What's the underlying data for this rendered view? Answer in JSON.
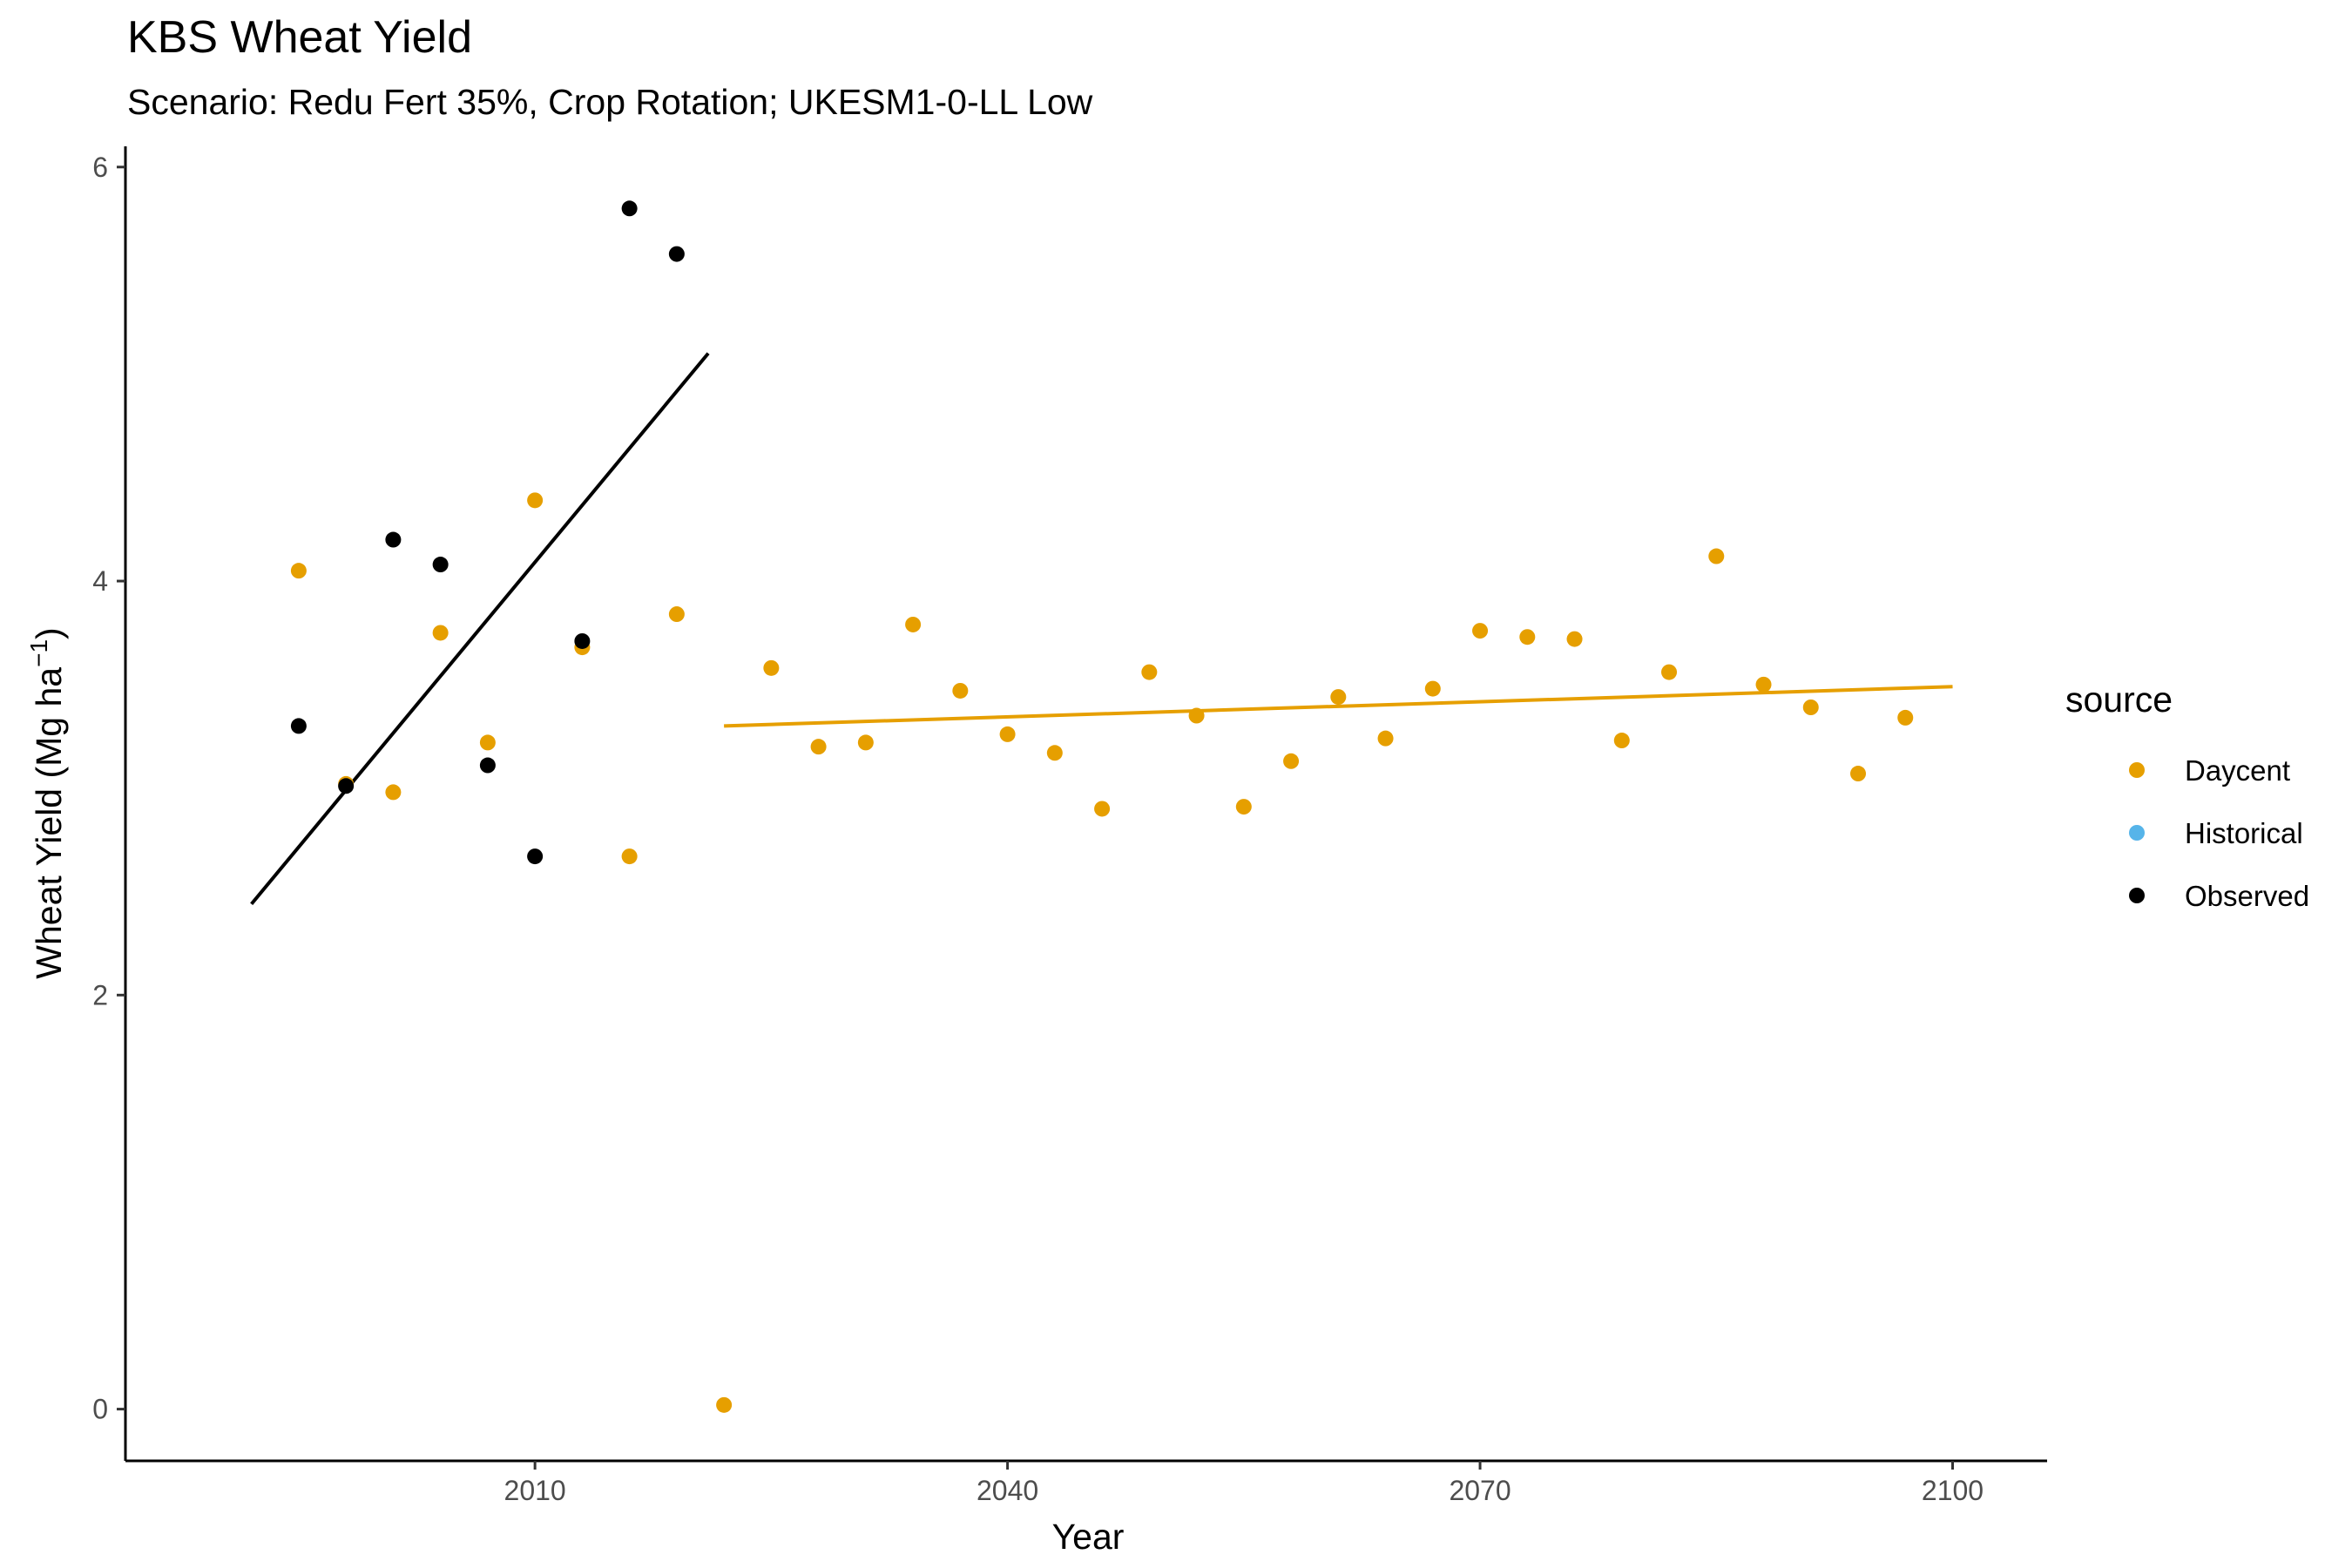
{
  "chart_data": {
    "type": "scatter",
    "title": "KBS Wheat Yield",
    "subtitle": "Scenario: Redu Fert 35%, Crop Rotation; UKESM1-0-LL Low",
    "xlabel": "Year",
    "ylabel_main": "Wheat Yield (Mg ha",
    "ylabel_sup": "−1",
    "ylabel_close": ")",
    "xlim": [
      1984,
      2106
    ],
    "ylim": [
      -0.25,
      6.1
    ],
    "xticks": [
      2010,
      2040,
      2070,
      2100
    ],
    "yticks": [
      0,
      2,
      4,
      6
    ],
    "grid": false,
    "legend_title": "source",
    "legend_position": "right",
    "colors": {
      "Daycent": "#E69F00",
      "Historical": "#56B4E9",
      "Observed": "#000000"
    },
    "series": [
      {
        "name": "Daycent",
        "x": [
          1995,
          1998,
          2001,
          2004,
          2007,
          2010,
          2013,
          2016,
          2019,
          2022,
          2025,
          2028,
          2031,
          2034,
          2037,
          2040,
          2043,
          2046,
          2049,
          2052,
          2055,
          2058,
          2061,
          2064,
          2067,
          2070,
          2073,
          2076,
          2079,
          2082,
          2085,
          2088,
          2091,
          2094,
          2097
        ],
        "y": [
          4.05,
          3.02,
          2.98,
          3.75,
          3.22,
          4.39,
          3.68,
          2.67,
          3.84,
          0.02,
          3.58,
          3.2,
          3.22,
          3.79,
          3.47,
          3.26,
          3.17,
          2.9,
          3.56,
          3.35,
          2.91,
          3.13,
          3.44,
          3.24,
          3.48,
          3.76,
          3.73,
          3.72,
          3.23,
          3.56,
          4.12,
          3.5,
          3.39,
          3.07,
          3.34
        ]
      },
      {
        "name": "Historical",
        "x": [],
        "y": []
      },
      {
        "name": "Observed",
        "x": [
          1995,
          1998,
          2001,
          2004,
          2007,
          2010,
          2013,
          2016,
          2019
        ],
        "y": [
          3.3,
          3.01,
          4.2,
          4.08,
          3.11,
          2.67,
          3.71,
          5.8,
          5.58
        ]
      }
    ],
    "trend_lines": [
      {
        "series": "Observed",
        "x": [
          1992,
          2021
        ],
        "y": [
          2.44,
          5.1
        ]
      },
      {
        "series": "Daycent",
        "x": [
          2022,
          2100
        ],
        "y": [
          3.3,
          3.49
        ]
      }
    ]
  }
}
